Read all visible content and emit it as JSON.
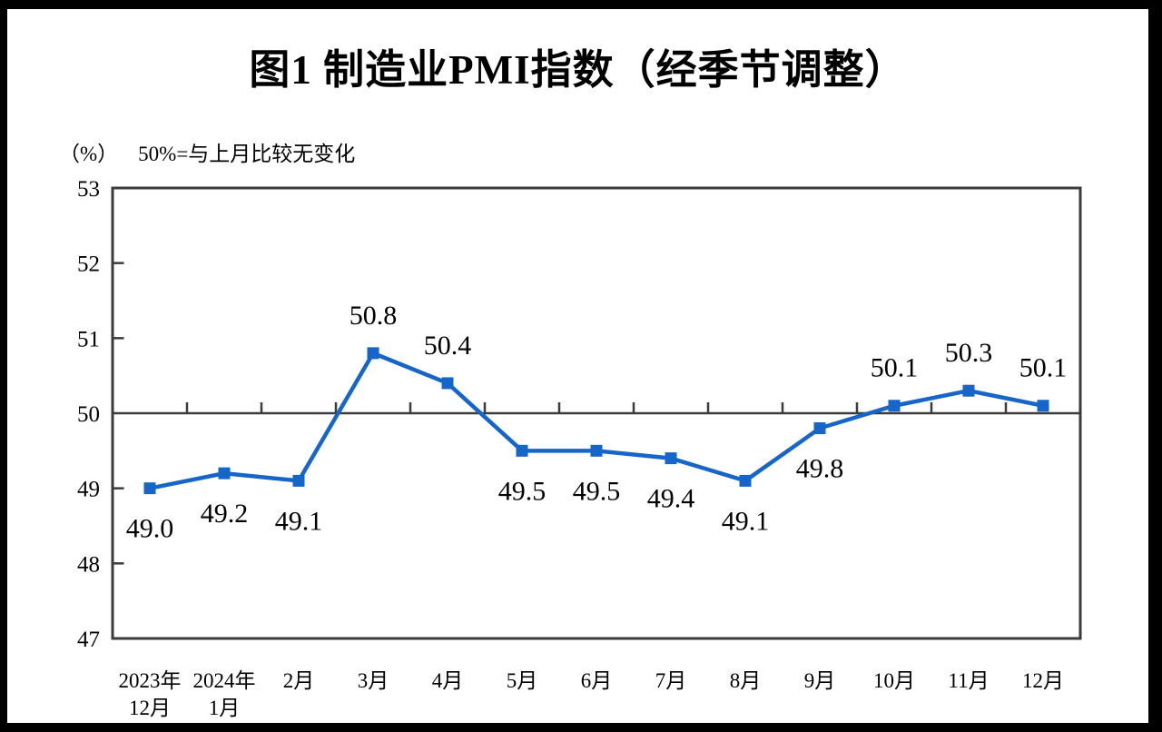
{
  "frame": {
    "border_color": "#000000",
    "canvas_background": "#ffffff"
  },
  "chart": {
    "title": "图1  制造业PMI指数（经季节调整）",
    "unit_label": "（%）",
    "note": "50%=与上月比较无变化"
  },
  "chart_data": {
    "type": "line",
    "title": "图1  制造业PMI指数（经季节调整）",
    "unit": "%",
    "annotation": "50%=与上月比较无变化",
    "categories": [
      "2023年12月",
      "2024年1月",
      "2月",
      "3月",
      "4月",
      "5月",
      "6月",
      "7月",
      "8月",
      "9月",
      "10月",
      "11月",
      "12月"
    ],
    "category_labels": [
      [
        "2023年",
        "12月"
      ],
      [
        "2024年",
        "1月"
      ],
      [
        "2月"
      ],
      [
        "3月"
      ],
      [
        "4月"
      ],
      [
        "5月"
      ],
      [
        "6月"
      ],
      [
        "7月"
      ],
      [
        "8月"
      ],
      [
        "9月"
      ],
      [
        "10月"
      ],
      [
        "11月"
      ],
      [
        "12月"
      ]
    ],
    "series": [
      {
        "name": "制造业PMI指数",
        "values": [
          49.0,
          49.2,
          49.1,
          50.8,
          50.4,
          49.5,
          49.5,
          49.4,
          49.1,
          49.8,
          50.1,
          50.3,
          50.1
        ],
        "value_labels": [
          "49.0",
          "49.2",
          "49.1",
          "50.8",
          "50.4",
          "49.5",
          "49.5",
          "49.4",
          "49.1",
          "49.8",
          "50.1",
          "50.3",
          "50.1"
        ]
      }
    ],
    "ylim": [
      47,
      53
    ],
    "yticks": [
      47,
      48,
      49,
      50,
      51,
      52,
      53
    ],
    "reference_line": 50,
    "grid": false,
    "legend": "none",
    "data_labels": true,
    "line_color": "#1665c9",
    "marker": "square",
    "marker_size": 13,
    "axis_color": "#3b3b3b"
  }
}
